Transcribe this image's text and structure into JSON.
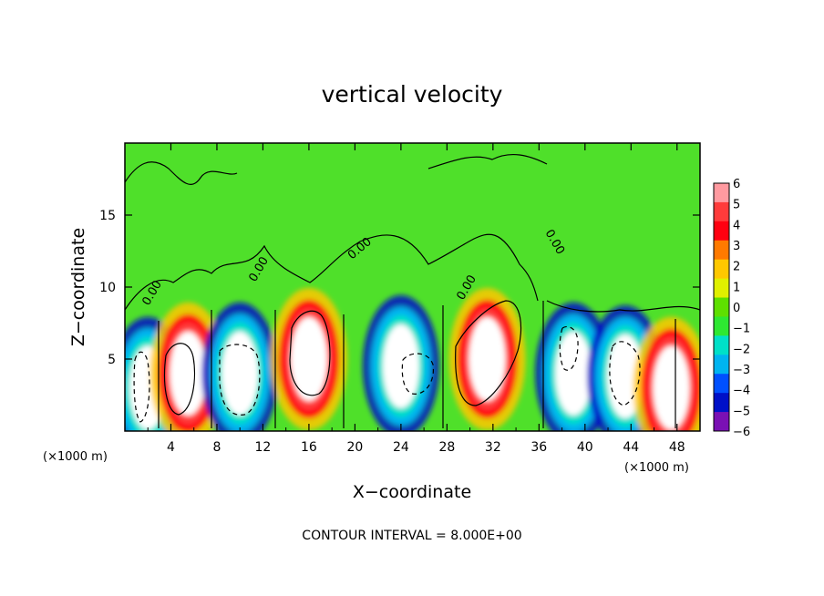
{
  "chart_data": {
    "type": "heatmap",
    "title": "vertical velocity",
    "xlabel": "X−coordinate",
    "ylabel": "Z−coordinate",
    "x_units": "(×1000 m)",
    "z_units": "(×1000 m)",
    "xlim": [
      0,
      50
    ],
    "ylim": [
      0,
      20
    ],
    "x_ticks": [
      4,
      8,
      12,
      16,
      20,
      24,
      28,
      32,
      36,
      40,
      44,
      48
    ],
    "x_tick_labels": [
      "4",
      "8",
      "12",
      "16",
      "20",
      "24",
      "28",
      "32",
      "36",
      "40",
      "44",
      "48"
    ],
    "y_ticks": [
      5,
      10,
      15
    ],
    "y_tick_labels": [
      "5",
      "10",
      "15"
    ],
    "colorbar": {
      "levels": [
        6,
        5,
        4,
        3,
        2,
        1,
        0,
        -1,
        -2,
        -3,
        -4,
        -5,
        -6
      ],
      "labels": [
        "6",
        "5",
        "4",
        "3",
        "2",
        "1",
        "0",
        "−1",
        "−2",
        "−3",
        "−4",
        "−5",
        "−6"
      ],
      "colors": [
        "#ff9aa0",
        "#ff3b3b",
        "#ff0010",
        "#ff7a00",
        "#ffc800",
        "#e0f000",
        "#5ee000",
        "#2ee832",
        "#00e0c8",
        "#00b4f0",
        "#0050ff",
        "#0010c8",
        "#7a10b4"
      ]
    },
    "contour_labels": [
      "0.00",
      "0.00",
      "0.00",
      "0.00",
      "0.00"
    ],
    "contour_interval_text": "CONTOUR INTERVAL = 8.000E+00",
    "cells": [
      {
        "x": 2.0,
        "z": 3.0,
        "w": -4.5
      },
      {
        "x": 5.5,
        "z": 4.0,
        "w": 5.5
      },
      {
        "x": 10.0,
        "z": 4.0,
        "w": -5.0
      },
      {
        "x": 16.0,
        "z": 5.0,
        "w": 5.5
      },
      {
        "x": 24.0,
        "z": 4.5,
        "w": -5.0
      },
      {
        "x": 31.5,
        "z": 5.0,
        "w": 5.5
      },
      {
        "x": 39.0,
        "z": 4.0,
        "w": -5.0
      },
      {
        "x": 43.5,
        "z": 3.8,
        "w": -5.0
      },
      {
        "x": 47.5,
        "z": 3.0,
        "w": 4.0
      }
    ]
  }
}
